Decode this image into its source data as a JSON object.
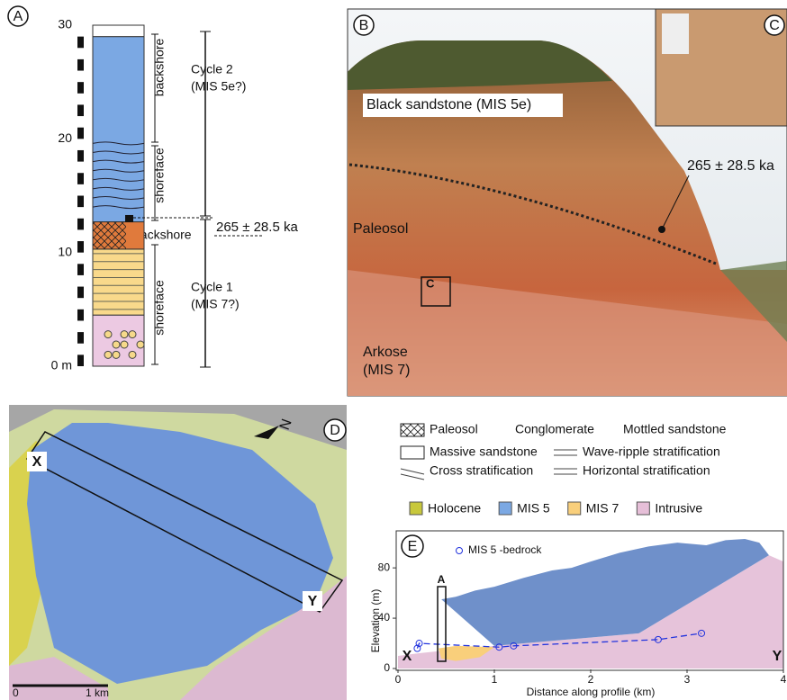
{
  "panel_a": {
    "label": "A",
    "ylim": [
      0,
      30
    ],
    "yticks": [
      {
        "value": 0,
        "label": "0 m"
      },
      10,
      20,
      30
    ],
    "layers": [
      {
        "from": 0,
        "to": 4.5,
        "color": "#ecc9e2"
      },
      {
        "from": 4.5,
        "to": 10.3,
        "color": "#f9d98b"
      },
      {
        "from": 10.3,
        "to": 12.7,
        "color": "#e07a3c"
      },
      {
        "from": 12.7,
        "to": 29,
        "color": "#7ba8e3"
      },
      {
        "from": 29,
        "to": 30,
        "color": "#ffffff"
      }
    ],
    "facies_upper": [
      "backshore",
      "shoreface"
    ],
    "facies_paleosol": "backshore",
    "facies_lower": "shoreface",
    "cycle2": [
      "Cycle 2",
      "(MIS 5e?)"
    ],
    "cycle1": [
      "Cycle 1",
      "(MIS 7?)"
    ],
    "age": "265 ± 28.5 ka"
  },
  "panel_b": {
    "label": "B",
    "inset_label": "C",
    "box_label": "C",
    "black_sandstone": "Black sandstone (MIS 5e)",
    "age": "265 ± 28.5 ka",
    "paleosol": "Paleosol",
    "arkose": [
      "Arkose",
      "(MIS 7)"
    ]
  },
  "panel_d": {
    "label": "D",
    "north": "N",
    "x_label": "X",
    "y_label": "Y",
    "scale": [
      "0",
      "1 km"
    ]
  },
  "legend": {
    "symbols": [
      "Paleosol",
      "Conglomerate",
      "Mottled sandstone",
      "Massive sandstone",
      "Wave-ripple stratification",
      "Cross stratification",
      "Horizontal stratification"
    ],
    "units": [
      {
        "name": "Holocene",
        "color": "#c8c83c"
      },
      {
        "name": "MIS 5",
        "color": "#7ba8e3"
      },
      {
        "name": "MIS 7",
        "color": "#f9cf7b"
      },
      {
        "name": "Intrusive",
        "color": "#e6bfd8"
      }
    ]
  },
  "panel_e": {
    "label": "E",
    "xlabel": "Distance along profile (km)",
    "ylabel": "Elevation (m)",
    "xlim": [
      0,
      4
    ],
    "ylim": [
      0,
      108
    ],
    "xticks": [
      0,
      1,
      2,
      3,
      4
    ],
    "yticks": [
      0,
      40,
      80
    ],
    "column_label": "A",
    "x_label": "X",
    "y_label": "Y",
    "series": {
      "name": "MIS 5 -bedrock",
      "color": "#2233dd",
      "x": [
        0.2,
        0.22,
        1.05,
        1.2,
        2.7,
        3.15
      ],
      "y": [
        16,
        20,
        17,
        18,
        23,
        28
      ]
    },
    "areas": [
      {
        "color": "#e6c3da",
        "x": [
          0,
          0.2,
          0.45,
          1.0,
          2.5,
          3.85,
          4,
          4,
          0
        ],
        "y": [
          10,
          12,
          14,
          18,
          28,
          90,
          85,
          0,
          0
        ]
      },
      {
        "color": "#6f90ca",
        "x": [
          0.45,
          0.6,
          0.8,
          1.0,
          1.3,
          1.6,
          1.8,
          2.0,
          2.3,
          2.6,
          2.9,
          3.2,
          3.4,
          3.6,
          3.75,
          3.85,
          2.5,
          1.0
        ],
        "y": [
          55,
          57,
          62,
          65,
          72,
          78,
          80,
          85,
          92,
          97,
          100,
          98,
          102,
          103,
          100,
          90,
          28,
          18
        ]
      },
      {
        "color": "#f9cf7b",
        "x": [
          0.42,
          0.6,
          1.0,
          0.85,
          0.6,
          0.45
        ],
        "y": [
          16,
          18,
          17,
          9,
          6,
          8
        ]
      }
    ]
  }
}
